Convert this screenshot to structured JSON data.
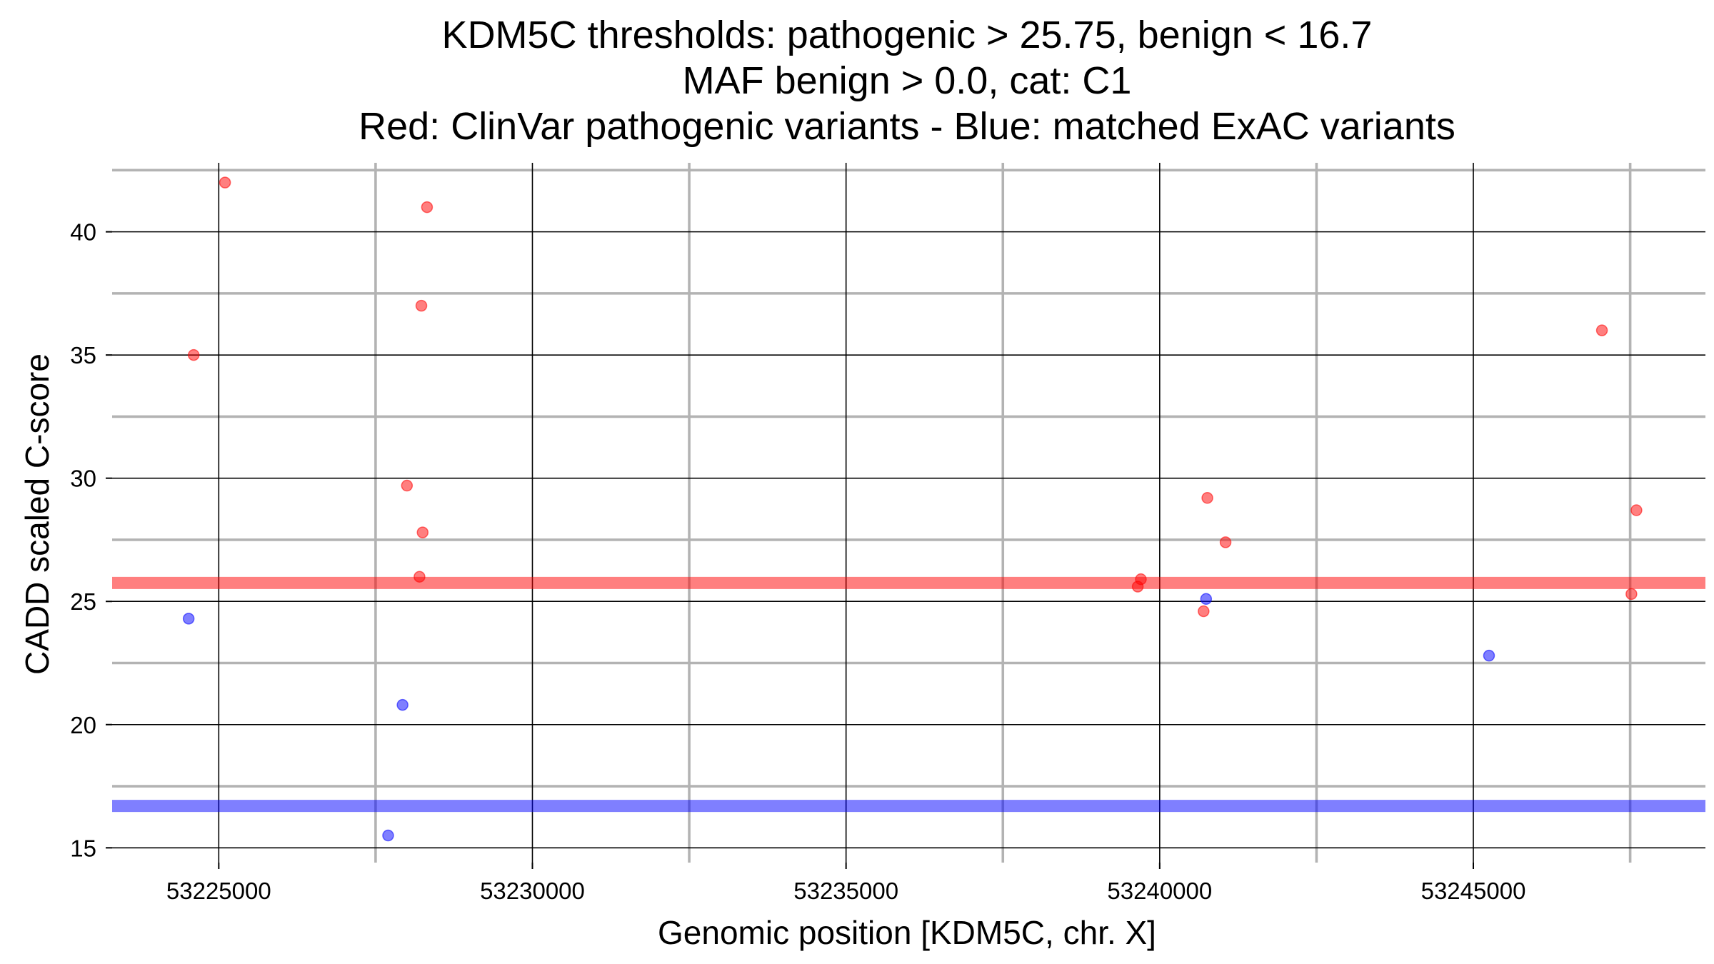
{
  "chart_data": {
    "type": "scatter",
    "title_lines": [
      "KDM5C thresholds: pathogenic > 25.75, benign < 16.7",
      "MAF benign > 0.0, cat: C1",
      "Red: ClinVar pathogenic variants - Blue: matched ExAC variants"
    ],
    "xlabel": "Genomic position [KDM5C, chr. X]",
    "ylabel": "CADD scaled C-score",
    "xlim": [
      53223300,
      53248700
    ],
    "ylim": [
      14.4,
      42.8
    ],
    "x_major_ticks": [
      53225000,
      53230000,
      53235000,
      53240000,
      53245000
    ],
    "x_tick_labels": [
      "53225000",
      "53230000",
      "53235000",
      "53240000",
      "53245000"
    ],
    "x_minor_ticks": [
      53227500,
      53232500,
      53237500,
      53242500,
      53247500
    ],
    "y_major_ticks": [
      15,
      20,
      25,
      30,
      35,
      40
    ],
    "y_tick_labels": [
      "15",
      "20",
      "25",
      "30",
      "35",
      "40"
    ],
    "y_minor_ticks": [
      17.5,
      22.5,
      27.5,
      32.5,
      37.5,
      42.5
    ],
    "thresholds": [
      {
        "name": "pathogenic",
        "value": 25.75,
        "color": "#ff0000"
      },
      {
        "name": "benign",
        "value": 16.7,
        "color": "#0000ff"
      }
    ],
    "series": [
      {
        "name": "ClinVar pathogenic variants",
        "color": "#ff0000",
        "points": [
          {
            "x": 53225100,
            "y": 42.0
          },
          {
            "x": 53224600,
            "y": 35.0
          },
          {
            "x": 53228320,
            "y": 41.0
          },
          {
            "x": 53228230,
            "y": 37.0
          },
          {
            "x": 53228000,
            "y": 29.7
          },
          {
            "x": 53228250,
            "y": 27.8
          },
          {
            "x": 53228200,
            "y": 26.0
          },
          {
            "x": 53239700,
            "y": 25.9
          },
          {
            "x": 53239650,
            "y": 25.6
          },
          {
            "x": 53240760,
            "y": 29.2
          },
          {
            "x": 53241050,
            "y": 27.4
          },
          {
            "x": 53240700,
            "y": 24.6
          },
          {
            "x": 53247050,
            "y": 36.0
          },
          {
            "x": 53247600,
            "y": 28.7
          },
          {
            "x": 53247520,
            "y": 25.3
          }
        ]
      },
      {
        "name": "matched ExAC variants",
        "color": "#0000ff",
        "points": [
          {
            "x": 53224520,
            "y": 24.3
          },
          {
            "x": 53227930,
            "y": 20.8
          },
          {
            "x": 53227700,
            "y": 15.5
          },
          {
            "x": 53240740,
            "y": 25.1
          },
          {
            "x": 53245250,
            "y": 22.8
          }
        ]
      }
    ]
  }
}
